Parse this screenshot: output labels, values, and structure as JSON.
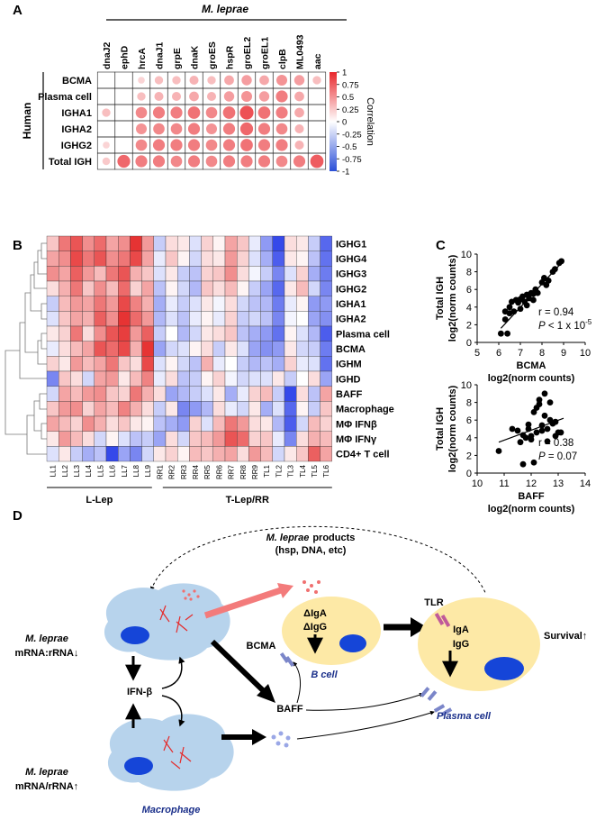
{
  "panel_labels": [
    "A",
    "B",
    "C",
    "D"
  ],
  "chart_data": [
    {
      "type": "correlation_matrix",
      "group_label_top": "M. leprae",
      "group_label_left": "Human",
      "columns": [
        "dnaJ2",
        "ephD",
        "hrcA",
        "dnaJ1",
        "grpE",
        "dnaK",
        "groES",
        "hspR",
        "groEL2",
        "groEL1",
        "clpB",
        "ML0493",
        "aac"
      ],
      "rows": [
        "BCMA",
        "Plasma cell",
        "IGHA1",
        "IGHA2",
        "IGHG2",
        "Total IGH"
      ],
      "values": [
        [
          null,
          null,
          0.2,
          0.3,
          0.3,
          0.35,
          0.3,
          0.4,
          0.45,
          0.4,
          0.5,
          0.45,
          0.3
        ],
        [
          null,
          null,
          0.3,
          0.35,
          0.35,
          0.4,
          0.35,
          0.45,
          0.5,
          0.45,
          0.6,
          0.4,
          null
        ],
        [
          0.3,
          null,
          0.55,
          0.6,
          0.6,
          0.65,
          0.55,
          0.65,
          0.8,
          0.65,
          0.6,
          0.4,
          null
        ],
        [
          null,
          null,
          0.5,
          0.55,
          0.55,
          0.6,
          0.5,
          0.6,
          0.7,
          0.6,
          0.55,
          0.35,
          null
        ],
        [
          0.2,
          null,
          0.55,
          0.6,
          0.6,
          0.6,
          0.55,
          0.6,
          0.65,
          0.6,
          0.6,
          0.35,
          null
        ],
        [
          0.25,
          0.7,
          0.6,
          0.6,
          0.55,
          0.6,
          0.55,
          0.6,
          0.6,
          0.6,
          0.55,
          0.6,
          0.75
        ]
      ],
      "colorbar": {
        "label": "Correlation",
        "lim": [
          -1,
          1
        ],
        "ticks": [
          1,
          0.75,
          0.5,
          0.25,
          0,
          -0.25,
          -0.5,
          -0.75,
          -1
        ],
        "colors": [
          "#2b4fd8",
          "#ffffff",
          "#e8262b"
        ]
      }
    },
    {
      "type": "heatmap",
      "rows": [
        "IGHG1",
        "IGHG4",
        "IGHG3",
        "IGHG2",
        "IGHA1",
        "IGHA2",
        "Plasma cell",
        "BCMA",
        "IGHM",
        "IGHD",
        "BAFF",
        "Macrophage",
        "MΦ IFNβ",
        "MΦ IFNγ",
        "CD4+ T cell"
      ],
      "column_groups": [
        {
          "label": "L-Lep",
          "columns": [
            "LL1",
            "LL2",
            "LL3",
            "LL4",
            "LL5",
            "LL6",
            "LL7",
            "LL8",
            "LL9"
          ]
        },
        {
          "label": "T-Lep/RR",
          "columns": [
            "RR1",
            "RR2",
            "RR3",
            "RR4",
            "RR5",
            "RR6",
            "RR7",
            "RR8",
            "RR9",
            "TL1",
            "TL2",
            "TL3",
            "TL4",
            "TL5",
            "TL6"
          ]
        }
      ],
      "values": [
        [
          0.5,
          1.2,
          1.5,
          1.0,
          1.3,
          0.8,
          1.0,
          1.8,
          0.9,
          -0.5,
          0.3,
          0.2,
          -0.3,
          0.4,
          0.1,
          0.8,
          0.5,
          -0.2,
          -1.0,
          -1.8,
          0.3,
          0.2,
          -0.5,
          -1.5
        ],
        [
          0.8,
          1.0,
          1.6,
          1.2,
          1.5,
          1.0,
          1.2,
          1.6,
          0.8,
          -0.2,
          0.5,
          0.1,
          -0.4,
          0.3,
          0.2,
          0.9,
          0.4,
          -0.3,
          -0.8,
          -1.6,
          0.2,
          0.1,
          -0.6,
          -1.4
        ],
        [
          1.0,
          0.8,
          1.4,
          0.9,
          0.6,
          1.2,
          1.5,
          0.7,
          0.5,
          -0.3,
          0.2,
          -0.5,
          -0.6,
          0.4,
          0.5,
          1.0,
          0.3,
          -0.1,
          -0.5,
          -1.2,
          -0.3,
          0.4,
          -0.8,
          -1.3
        ],
        [
          0.3,
          0.7,
          1.2,
          0.5,
          1.0,
          0.6,
          1.3,
          0.4,
          0.8,
          -0.6,
          0.1,
          -0.4,
          -0.7,
          0.5,
          0.3,
          0.6,
          0.1,
          -0.5,
          -0.9,
          -1.5,
          0.2,
          0.6,
          -0.4,
          -1.2
        ],
        [
          -0.5,
          0.6,
          0.9,
          0.8,
          1.2,
          0.9,
          1.6,
          1.1,
          0.7,
          -0.8,
          -0.2,
          -0.5,
          -0.3,
          0.2,
          -0.1,
          0.3,
          -0.4,
          -0.6,
          -0.7,
          -1.3,
          -0.2,
          0.1,
          -1.0,
          -1.0
        ],
        [
          -0.3,
          0.5,
          0.8,
          0.7,
          1.4,
          1.0,
          1.8,
          1.3,
          0.9,
          -0.7,
          -0.3,
          -0.6,
          -0.2,
          0.1,
          -0.2,
          0.4,
          -0.5,
          -0.4,
          -0.6,
          -1.2,
          -0.1,
          0.0,
          -0.9,
          -1.1
        ],
        [
          0.2,
          0.4,
          1.2,
          0.3,
          1.0,
          1.5,
          1.7,
          0.9,
          1.4,
          -0.5,
          0.0,
          -0.7,
          -0.4,
          0.2,
          0.3,
          0.5,
          -0.6,
          -0.8,
          -1.0,
          -1.4,
          0.1,
          -0.3,
          -0.7,
          -1.6
        ],
        [
          -0.2,
          0.3,
          0.6,
          0.8,
          1.5,
          1.3,
          1.6,
          0.7,
          1.8,
          -0.9,
          -0.4,
          -0.3,
          0.1,
          0.3,
          -0.5,
          0.2,
          -0.3,
          -0.9,
          -1.1,
          -1.0,
          0.2,
          -0.4,
          -0.5,
          -1.3
        ],
        [
          0.4,
          0.2,
          0.9,
          0.6,
          0.8,
          1.2,
          0.5,
          0.3,
          1.6,
          -0.3,
          0.1,
          -0.4,
          -0.6,
          0.7,
          -0.2,
          0.0,
          -0.5,
          -0.7,
          -0.6,
          -0.8,
          0.4,
          -0.2,
          -0.3,
          -1.4
        ],
        [
          -1.2,
          0.5,
          0.3,
          -0.4,
          0.8,
          0.9,
          0.2,
          0.6,
          1.1,
          -0.2,
          0.3,
          -0.6,
          -0.5,
          0.1,
          0.4,
          -0.1,
          -0.4,
          -0.3,
          -0.3,
          0.2,
          -0.5,
          0.0,
          0.3,
          -0.9
        ],
        [
          -0.4,
          0.8,
          0.6,
          0.9,
          1.0,
          0.5,
          0.4,
          1.2,
          0.7,
          0.3,
          -0.9,
          -0.7,
          -0.5,
          -0.3,
          0.2,
          -0.8,
          -0.2,
          0.4,
          0.6,
          -0.5,
          -1.8,
          0.3,
          -0.6,
          0.8
        ],
        [
          0.5,
          0.9,
          1.0,
          0.4,
          0.8,
          0.6,
          1.1,
          0.7,
          0.3,
          -0.5,
          0.2,
          -1.2,
          -1.0,
          -0.7,
          0.3,
          -0.2,
          -0.4,
          0.2,
          -0.8,
          -0.3,
          -1.5,
          0.1,
          -0.5,
          0.5
        ],
        [
          0.8,
          0.6,
          0.4,
          1.0,
          0.7,
          0.3,
          0.5,
          0.2,
          0.1,
          -0.6,
          -0.8,
          -1.0,
          0.4,
          -0.3,
          0.6,
          1.2,
          0.9,
          0.3,
          0.2,
          -0.7,
          -1.6,
          -0.4,
          0.6,
          0.4
        ],
        [
          0.2,
          0.9,
          0.6,
          0.3,
          -0.4,
          0.1,
          -0.3,
          -0.6,
          -0.5,
          -0.9,
          0.3,
          -0.4,
          0.5,
          0.6,
          0.9,
          1.5,
          1.3,
          0.4,
          0.5,
          -0.2,
          -1.2,
          0.3,
          0.7,
          0.6
        ],
        [
          -0.3,
          0.2,
          -0.5,
          -0.8,
          -0.6,
          -1.8,
          -0.9,
          -1.2,
          -0.4,
          0.2,
          0.4,
          0.1,
          0.6,
          0.5,
          0.7,
          0.8,
          0.3,
          0.9,
          0.6,
          -0.4,
          0.2,
          0.5,
          1.4,
          0.8
        ]
      ],
      "color_scale": {
        "lim": [
          -2,
          2
        ],
        "colors": [
          "#1f35e8",
          "#ffffff",
          "#e31c1c"
        ]
      }
    },
    {
      "type": "scatter",
      "x": [
        6.1,
        6.3,
        6.3,
        6.4,
        6.5,
        6.5,
        6.6,
        6.7,
        6.8,
        6.9,
        7.0,
        7.0,
        7.1,
        7.2,
        7.3,
        7.3,
        7.4,
        7.5,
        7.6,
        7.6,
        7.7,
        7.8,
        8.0,
        8.1,
        8.2,
        8.3,
        8.5,
        8.6,
        8.8,
        8.9
      ],
      "y": [
        1.0,
        2.6,
        3.5,
        1.0,
        3.3,
        4.0,
        4.6,
        3.5,
        4.8,
        4.5,
        4.9,
        3.8,
        5.2,
        4.6,
        5.4,
        4.2,
        5.0,
        5.6,
        5.5,
        4.8,
        6.0,
        5.6,
        6.8,
        7.3,
        6.5,
        7.0,
        8.0,
        8.3,
        9.0,
        9.2
      ],
      "color": "#000000",
      "fit": {
        "x": [
          6.1,
          8.9
        ],
        "y": [
          1.6,
          9.0
        ]
      },
      "xlim": [
        5,
        10
      ],
      "xticks": [
        5,
        6,
        7,
        8,
        9,
        10
      ],
      "ylim": [
        0,
        10
      ],
      "yticks": [
        0,
        2,
        4,
        6,
        8,
        10
      ],
      "xlabel": [
        "BCMA",
        "log2(norm counts)"
      ],
      "ylabel": [
        "Total IGH",
        "log2(norm counts)"
      ],
      "annotations": [
        [
          {
            "text": "r = 0.94"
          }
        ],
        [
          {
            "text": "P",
            "italic": true
          },
          {
            "text": " < 1 x 10"
          },
          {
            "text": "-5",
            "sup": true
          }
        ]
      ]
    },
    {
      "type": "scatter",
      "x": [
        10.8,
        11.3,
        11.5,
        11.6,
        11.7,
        11.7,
        11.8,
        11.9,
        11.9,
        12.0,
        12.0,
        12.1,
        12.1,
        12.2,
        12.2,
        12.3,
        12.3,
        12.4,
        12.4,
        12.5,
        12.5,
        12.6,
        12.6,
        12.7,
        12.8,
        12.9,
        12.9,
        13.0,
        13.1,
        12.7
      ],
      "y": [
        2.5,
        5.0,
        4.8,
        3.5,
        4.3,
        1.0,
        4.0,
        5.0,
        5.5,
        4.2,
        3.8,
        6.9,
        1.2,
        7.4,
        4.6,
        8.3,
        7.8,
        5.4,
        4.8,
        9.0,
        6.5,
        3.6,
        5.0,
        8.0,
        5.6,
        4.2,
        5.8,
        4.6,
        4.6,
        6.0
      ],
      "color": "#000000",
      "fit": {
        "x": [
          10.8,
          13.2
        ],
        "y": [
          3.5,
          6.2
        ]
      },
      "xlim": [
        10,
        14
      ],
      "xticks": [
        10,
        11,
        12,
        13,
        14
      ],
      "ylim": [
        0,
        10
      ],
      "yticks": [
        0,
        2,
        4,
        6,
        8,
        10
      ],
      "xlabel": [
        "BAFF",
        "log2(norm counts)"
      ],
      "ylabel": [
        "Total IGH",
        "log2(norm counts)"
      ],
      "annotations": [
        [
          {
            "text": "r = 0.38"
          }
        ],
        [
          {
            "text": "P",
            "italic": true
          },
          {
            "text": " = 0.07"
          }
        ]
      ]
    }
  ],
  "diagram": {
    "products": {
      "organism": "M. leprae",
      "text": "products",
      "detail": "(hsp, DNA, etc)"
    },
    "macrophage_low": {
      "organism": "M. leprae",
      "ratio": "mRNA:rRNA↓"
    },
    "macrophage_high": {
      "organism": "M. leprae",
      "ratio": "mRNA/rRNA↑"
    },
    "ifn": "IFN-β",
    "macrophage": "Macrophage",
    "baff": "BAFF",
    "bcma": "BCMA",
    "b_cell": {
      "label": "B cell",
      "lines": [
        "ΔIgA",
        "ΔIgG"
      ]
    },
    "plasma_cell": {
      "label": "Plasma cell",
      "lines": [
        "IgA",
        "IgG"
      ],
      "tlr": "TLR",
      "outcome": "Survival↑"
    }
  }
}
